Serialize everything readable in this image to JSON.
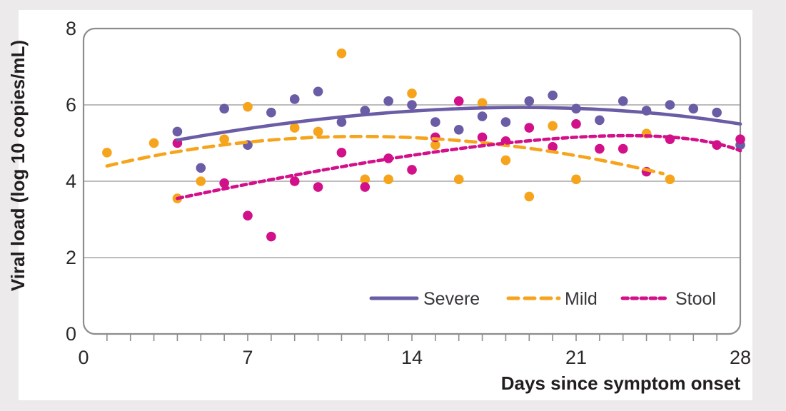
{
  "page": {
    "background_color": "#ECEAEB",
    "card_background_color": "#FFFFFF"
  },
  "chart_data": {
    "type": "scatter",
    "title": "",
    "xlabel": "Days since symptom onset",
    "ylabel": "Viral load (log 10 copies/mL)",
    "xlim": [
      0,
      28
    ],
    "ylim": [
      0,
      8
    ],
    "x_ticks": [
      "0",
      "7",
      "14",
      "21",
      "28"
    ],
    "x_tick_values": [
      0,
      7,
      14,
      21,
      28
    ],
    "x_minor_tick_step": 1,
    "y_ticks": [
      "0",
      "2",
      "4",
      "6",
      "8"
    ],
    "y_tick_values": [
      0,
      2,
      4,
      6,
      8
    ],
    "gridline_values": [
      2,
      4,
      6
    ],
    "grid": "horizontal",
    "axis_color": "#8C8C8C",
    "gridline_color": "#A5A5A5",
    "tick_label_color": "#2B2829",
    "axis_title_color": "#221E1F",
    "legend_position": "inside-bottom-right",
    "series": [
      {
        "name": "Severe",
        "color": "#6A5CA5",
        "marker": "circle",
        "line_style": "solid",
        "points": [
          [
            4,
            5.3
          ],
          [
            5,
            4.35
          ],
          [
            6,
            5.9
          ],
          [
            7,
            4.95
          ],
          [
            8,
            5.8
          ],
          [
            9,
            6.15
          ],
          [
            10,
            6.35
          ],
          [
            11,
            5.55
          ],
          [
            12,
            5.85
          ],
          [
            13,
            6.1
          ],
          [
            14,
            6.0
          ],
          [
            15,
            5.55
          ],
          [
            16,
            5.35
          ],
          [
            17,
            5.7
          ],
          [
            18,
            5.55
          ],
          [
            19,
            6.1
          ],
          [
            20,
            6.25
          ],
          [
            21,
            5.9
          ],
          [
            22,
            5.6
          ],
          [
            23,
            6.1
          ],
          [
            24,
            5.85
          ],
          [
            25,
            6.0
          ],
          [
            26,
            5.9
          ],
          [
            27,
            5.8
          ],
          [
            28,
            4.95
          ]
        ],
        "trend": {
          "start": [
            4,
            5.08
          ],
          "control": [
            17.4,
            6.54
          ],
          "end": [
            28,
            5.5
          ]
        }
      },
      {
        "name": "Mild",
        "color": "#F6A41C",
        "marker": "circle",
        "line_style": "dashed",
        "points": [
          [
            1,
            4.75
          ],
          [
            3,
            5.0
          ],
          [
            4,
            3.55
          ],
          [
            5,
            4.0
          ],
          [
            6,
            5.1
          ],
          [
            7,
            5.95
          ],
          [
            9,
            5.4
          ],
          [
            10,
            5.3
          ],
          [
            11,
            7.35
          ],
          [
            12,
            4.05
          ],
          [
            13,
            4.05
          ],
          [
            14,
            6.3
          ],
          [
            15,
            4.95
          ],
          [
            16,
            4.05
          ],
          [
            17,
            6.05
          ],
          [
            18,
            4.55
          ],
          [
            19,
            3.6
          ],
          [
            20,
            5.45
          ],
          [
            21,
            4.05
          ],
          [
            24,
            5.25
          ],
          [
            25,
            4.05
          ]
        ],
        "trend": {
          "start": [
            1,
            4.4
          ],
          "control": [
            12.15,
            6.04
          ],
          "end": [
            24.7,
            4.2
          ]
        }
      },
      {
        "name": "Stool",
        "color": "#D2108A",
        "marker": "circle",
        "line_style": "short-dash",
        "points": [
          [
            4,
            5.0
          ],
          [
            6,
            3.95
          ],
          [
            7,
            3.1
          ],
          [
            8,
            2.55
          ],
          [
            9,
            4.0
          ],
          [
            10,
            3.85
          ],
          [
            11,
            4.75
          ],
          [
            12,
            3.85
          ],
          [
            13,
            4.6
          ],
          [
            14,
            4.3
          ],
          [
            15,
            5.15
          ],
          [
            16,
            6.1
          ],
          [
            17,
            5.15
          ],
          [
            18,
            5.05
          ],
          [
            19,
            5.4
          ],
          [
            20,
            4.9
          ],
          [
            21,
            5.5
          ],
          [
            22,
            4.85
          ],
          [
            23,
            4.85
          ],
          [
            24,
            4.25
          ],
          [
            25,
            5.1
          ],
          [
            27,
            4.95
          ],
          [
            28,
            5.1
          ]
        ],
        "trend": {
          "start": [
            4,
            3.55
          ],
          "control": [
            23,
            6.0
          ],
          "end": [
            28,
            4.8
          ]
        }
      }
    ],
    "legend": {
      "items": [
        {
          "label": "Severe"
        },
        {
          "label": "Mild"
        },
        {
          "label": "Stool"
        }
      ]
    }
  }
}
